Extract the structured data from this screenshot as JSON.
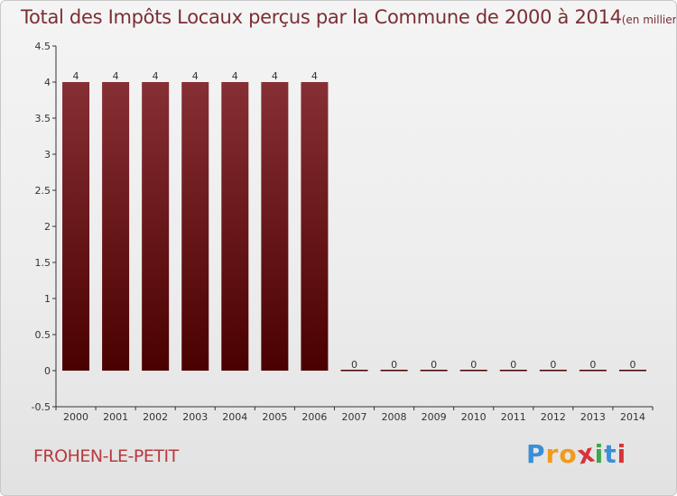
{
  "title": {
    "main": "Total des Impôts Locaux perçus par la Commune de 2000 à 2014",
    "unit": "(en milliers d'€)"
  },
  "commune": "FROHEN-LE-PETIT",
  "logo": {
    "text": "Proxiti",
    "letters": [
      "P",
      "r",
      "o",
      "x",
      "i",
      "t",
      "i"
    ],
    "colors": [
      "#3a8fd6",
      "#f29a1d",
      "#f29a1d",
      "#d6323a",
      "#3aa84a",
      "#3a8fd6",
      "#d6323a"
    ]
  },
  "colors": {
    "bar_top": "#862f35",
    "bar_bottom": "#4a0000",
    "axis": "#333333",
    "title": "#7a2f34",
    "commune": "#b83a3e"
  },
  "chart_data": {
    "type": "bar",
    "title": "Total des Impôts Locaux perçus par la Commune de 2000 à 2014",
    "ylabel": "en milliers d'€",
    "xlabel": "",
    "categories": [
      "2000",
      "2001",
      "2002",
      "2003",
      "2004",
      "2005",
      "2006",
      "2007",
      "2008",
      "2009",
      "2010",
      "2011",
      "2012",
      "2013",
      "2014"
    ],
    "values": [
      4,
      4,
      4,
      4,
      4,
      4,
      4,
      0,
      0,
      0,
      0,
      0,
      0,
      0,
      0
    ],
    "data_labels": [
      "4",
      "4",
      "4",
      "4",
      "4",
      "4",
      "4",
      "0",
      "0",
      "0",
      "0",
      "0",
      "0",
      "0",
      "0"
    ],
    "ylim": [
      -0.5,
      4.5
    ],
    "yticks": [
      -0.5,
      0,
      0.5,
      1,
      1.5,
      2,
      2.5,
      3,
      3.5,
      4,
      4.5
    ],
    "ytick_labels": [
      "-0.5",
      "0",
      "0.5",
      "1",
      "1.5",
      "2",
      "2.5",
      "3",
      "3.5",
      "4",
      "4.5"
    ],
    "grid": false,
    "legend": "none"
  }
}
